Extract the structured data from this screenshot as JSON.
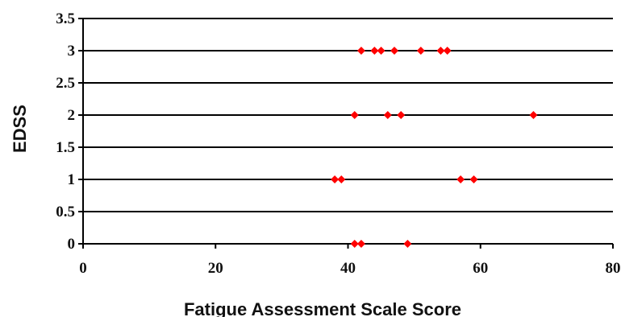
{
  "chart_data": {
    "type": "scatter",
    "title": "",
    "xlabel": "Fatigue Assessment Scale Score",
    "ylabel": "EDSS",
    "xlim": [
      0,
      80
    ],
    "ylim": [
      0,
      3.5
    ],
    "x_ticks": [
      "0",
      "20",
      "40",
      "60",
      "80"
    ],
    "y_ticks": [
      "0",
      "0.5",
      "1",
      "1.5",
      "2",
      "2.5",
      "3",
      "3.5"
    ],
    "grid": "horizontal",
    "legend": "none",
    "marker_color": "#ff0000",
    "gridline_color": "#000000",
    "series": [
      {
        "points": [
          {
            "x": 41,
            "y": 0
          },
          {
            "x": 42,
            "y": 0
          },
          {
            "x": 49,
            "y": 0
          },
          {
            "x": 38,
            "y": 1
          },
          {
            "x": 39,
            "y": 1
          },
          {
            "x": 57,
            "y": 1
          },
          {
            "x": 59,
            "y": 1
          },
          {
            "x": 41,
            "y": 2
          },
          {
            "x": 46,
            "y": 2
          },
          {
            "x": 48,
            "y": 2
          },
          {
            "x": 68,
            "y": 2
          },
          {
            "x": 42,
            "y": 3
          },
          {
            "x": 44,
            "y": 3
          },
          {
            "x": 45,
            "y": 3
          },
          {
            "x": 47,
            "y": 3
          },
          {
            "x": 51,
            "y": 3
          },
          {
            "x": 54,
            "y": 3
          },
          {
            "x": 55,
            "y": 3
          }
        ]
      }
    ]
  }
}
